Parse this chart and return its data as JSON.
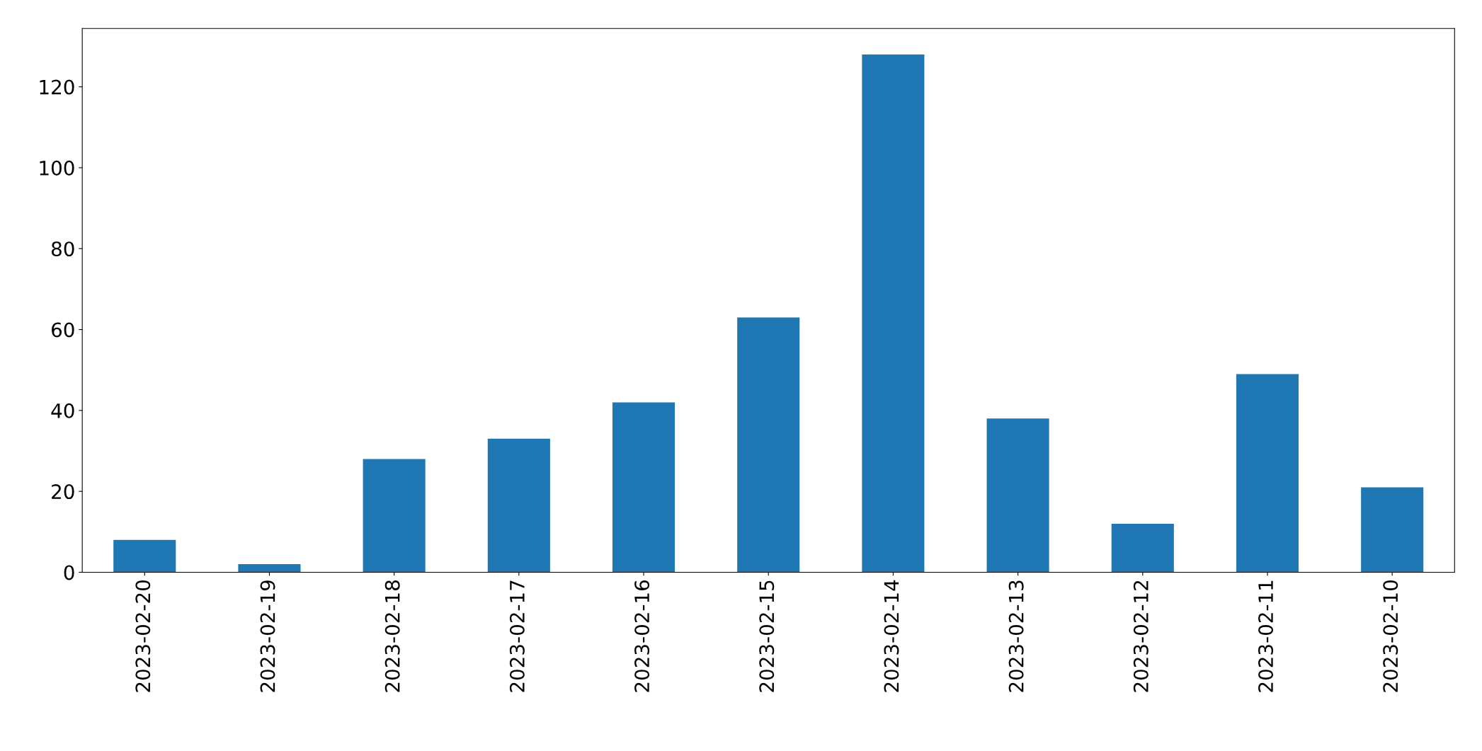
{
  "chart_data": {
    "type": "bar",
    "categories": [
      "2023-02-20",
      "2023-02-19",
      "2023-02-18",
      "2023-02-17",
      "2023-02-16",
      "2023-02-15",
      "2023-02-14",
      "2023-02-13",
      "2023-02-12",
      "2023-02-11",
      "2023-02-10"
    ],
    "values": [
      8,
      2,
      28,
      33,
      42,
      63,
      128,
      38,
      12,
      49,
      21
    ],
    "color": "#1f77b4",
    "ylim": [
      0,
      134.4
    ],
    "yticks": [
      0,
      20,
      40,
      60,
      80,
      100,
      120
    ],
    "grid": false,
    "legend": false
  }
}
